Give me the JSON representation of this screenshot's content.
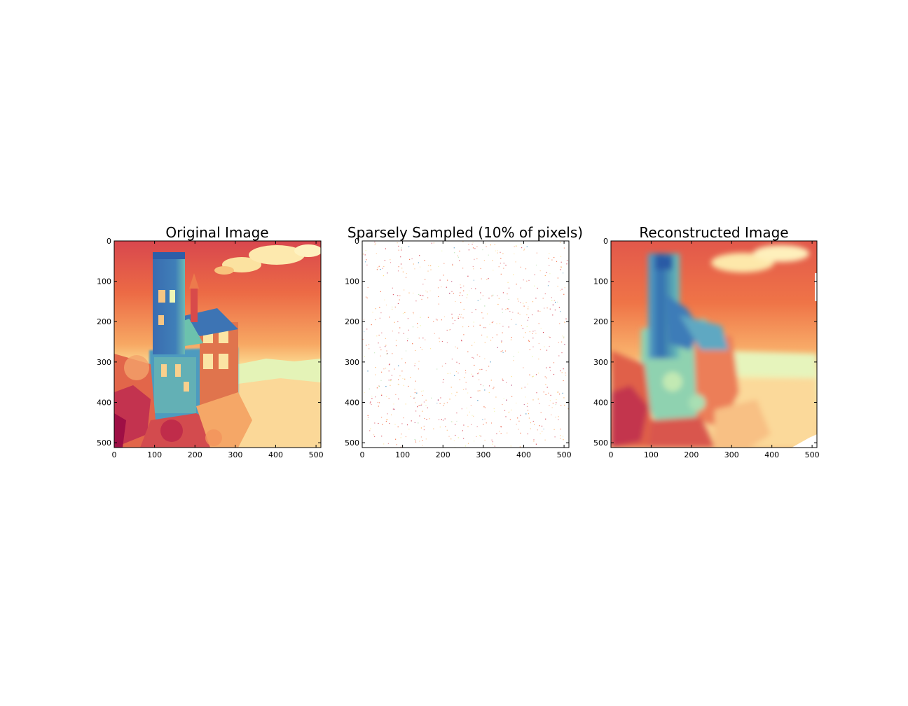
{
  "figure": {
    "panels": [
      {
        "title": "Original Image"
      },
      {
        "title": "Sparsely Sampled (10% of pixels)"
      },
      {
        "title": "Reconstructed Image"
      }
    ]
  },
  "chart_data": [
    {
      "type": "heatmap",
      "title": "Original Image",
      "colormap": "Spectral",
      "image_size": [
        512,
        512
      ],
      "xlim": [
        0,
        512
      ],
      "ylim": [
        512,
        0
      ],
      "x_ticks": [
        0,
        100,
        200,
        300,
        400,
        500
      ],
      "y_ticks": [
        0,
        100,
        200,
        300,
        400,
        500
      ],
      "content": "castle photograph rendered in Spectral colormap"
    },
    {
      "type": "heatmap",
      "title": "Sparsely Sampled (10% of pixels)",
      "colormap": "Spectral",
      "image_size": [
        512,
        512
      ],
      "sample_fraction": 0.1,
      "xlim": [
        0,
        512
      ],
      "ylim": [
        512,
        0
      ],
      "x_ticks": [
        0,
        100,
        200,
        300,
        400,
        500
      ],
      "y_ticks": [
        0,
        100,
        200,
        300,
        400,
        500
      ],
      "content": "scattered sampled pixels on white background"
    },
    {
      "type": "heatmap",
      "title": "Reconstructed Image",
      "colormap": "Spectral",
      "image_size": [
        512,
        512
      ],
      "xlim": [
        0,
        512
      ],
      "ylim": [
        512,
        0
      ],
      "x_ticks": [
        0,
        100,
        200,
        300,
        400,
        500
      ],
      "y_ticks": [
        0,
        100,
        200,
        300,
        400,
        500
      ],
      "content": "smooth interpolated reconstruction of castle image"
    }
  ]
}
